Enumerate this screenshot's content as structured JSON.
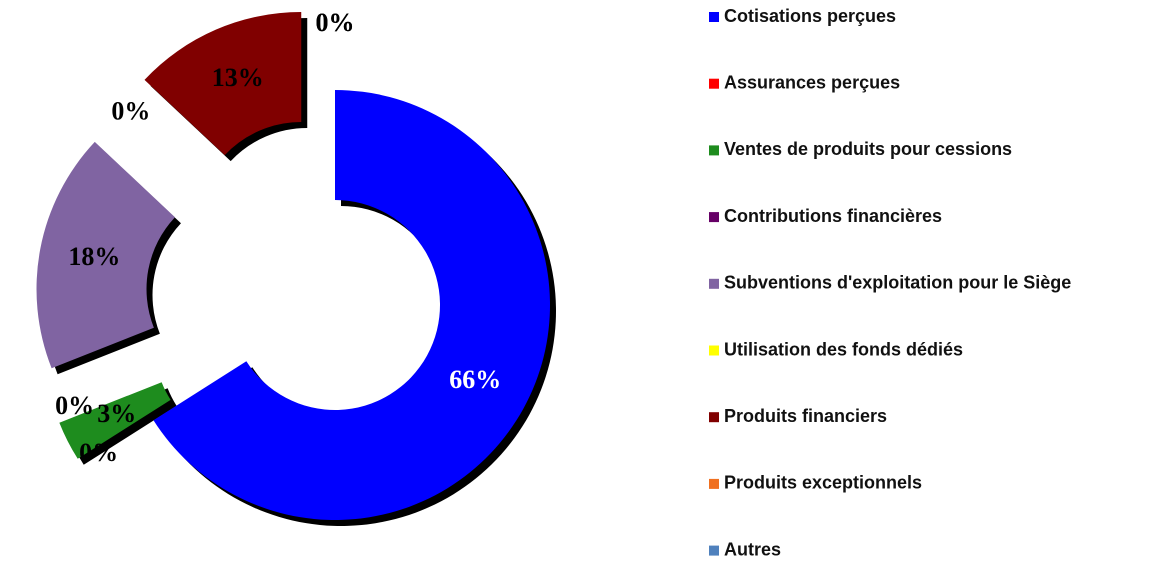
{
  "chart_data": {
    "type": "donut",
    "categories": [
      "Cotisations perçues",
      "Assurances perçues",
      "Ventes de produits pour cessions",
      "Contributions financières",
      "Subventions d'exploitation pour le Siège",
      "Utilisation des fonds dédiés",
      "Produits financiers",
      "Produits exceptionnels",
      "Autres"
    ],
    "values": [
      66,
      0,
      3,
      0,
      18,
      0,
      13,
      0,
      0
    ],
    "value_labels": [
      "66%",
      "0%",
      "3%",
      "0%",
      "18%",
      "0%",
      "13%",
      "0%",
      "0%"
    ],
    "colors": [
      "#0000ff",
      "#ff0000",
      "#1e8c1e",
      "#660066",
      "#8064a2",
      "#ffff00",
      "#800000",
      "#f07020",
      "#4f81bd"
    ],
    "legend": "right"
  }
}
